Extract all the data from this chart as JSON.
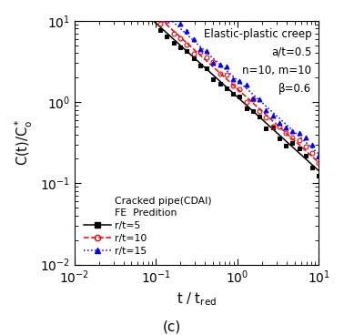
{
  "title_text": "Elastic-plastic creep\na/t=0.5\nn=10, m=10\nβ=0.6",
  "xlabel": "t / t$_\\mathregular{red}$",
  "ylabel": "C(t)/C$_\\mathregular{o}^*$",
  "caption": "(c)",
  "xlim": [
    0.01,
    10
  ],
  "ylim": [
    0.01,
    10
  ],
  "slope": -0.9091,
  "series": [
    {
      "label": "r/t=5",
      "marker": "s",
      "marker_color": "black",
      "marker_facecolor": "black",
      "line_color": "black",
      "line_style": "-",
      "amplitude": 1.15,
      "seed": 42
    },
    {
      "label": "r/t=10",
      "marker": "o",
      "marker_color": "red",
      "marker_facecolor": "none",
      "line_color": "red",
      "line_style": "--",
      "amplitude": 1.45,
      "seed": 43
    },
    {
      "label": "r/t=15",
      "marker": "^",
      "marker_color": "blue",
      "marker_facecolor": "blue",
      "line_color": "blue",
      "line_style": ":",
      "amplitude": 1.85,
      "seed": 44
    }
  ],
  "legend_header1": "Cracked pipe(CDAI)",
  "legend_header2": "FE  Predition",
  "figsize": [
    3.78,
    3.68
  ],
  "dpi": 100
}
